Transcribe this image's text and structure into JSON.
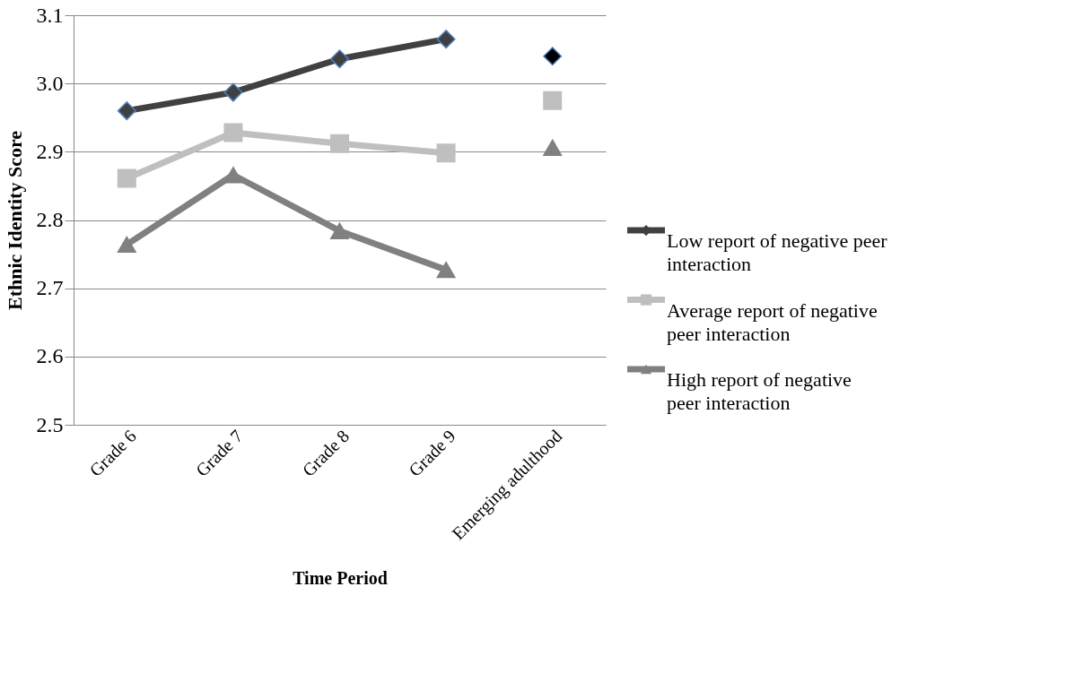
{
  "chart_data": {
    "type": "line",
    "xlabel": "Time Period",
    "ylabel": "Ethnic Identity Score",
    "categories": [
      "Grade 6",
      "Grade 7",
      "Grade 8",
      "Grade 9",
      "Emerging adulthood"
    ],
    "series": [
      {
        "name": "Low report of negative peer interaction",
        "color": "#404040",
        "marker": "diamond",
        "values": [
          2.96,
          2.987,
          3.036,
          3.065,
          null
        ]
      },
      {
        "name": "Average report of negative peer interaction",
        "color": "#bfbfbf",
        "marker": "square",
        "values": [
          2.861,
          2.928,
          2.912,
          2.898,
          null
        ]
      },
      {
        "name": "High report of negative peer interaction",
        "color": "#808080",
        "marker": "triangle",
        "values": [
          2.764,
          2.866,
          2.784,
          2.727,
          null
        ]
      },
      {
        "type": "scatter",
        "color": "#000000",
        "marker": "diamond",
        "values": [
          null,
          null,
          null,
          null,
          3.04
        ]
      },
      {
        "type": "scatter",
        "color": "#bfbfbf",
        "marker": "square",
        "values": [
          null,
          null,
          null,
          null,
          2.975
        ]
      },
      {
        "type": "scatter",
        "color": "#808080",
        "marker": "triangle",
        "values": [
          null,
          null,
          null,
          null,
          2.906
        ]
      }
    ],
    "ylim": [
      2.5,
      3.1
    ],
    "yticks": [
      {
        "value": 2.5,
        "label": "2.5"
      },
      {
        "value": 2.6,
        "label": "2.6"
      },
      {
        "value": 2.7,
        "label": "2.7"
      },
      {
        "value": 2.8,
        "label": "2.8"
      },
      {
        "value": 2.9,
        "label": "2.9"
      },
      {
        "value": 3.0,
        "label": "3.0"
      },
      {
        "value": 3.1,
        "label": "3.1"
      }
    ],
    "grid": "y",
    "legend": "right",
    "line_style": "solid"
  }
}
